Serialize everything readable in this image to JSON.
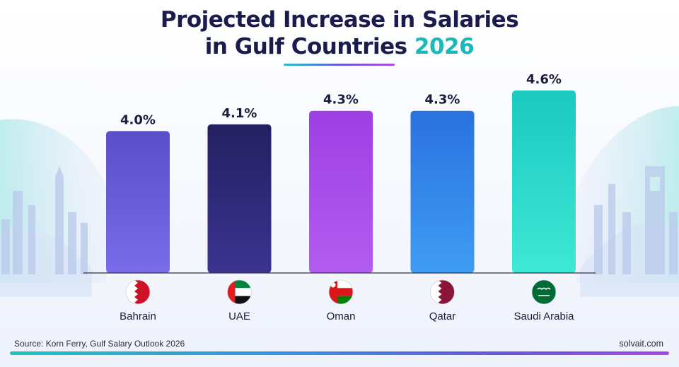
{
  "title": {
    "line1": "Projected Increase in Salaries",
    "line2_prefix": "in Gulf Countries ",
    "line2_year": "2026"
  },
  "chart_data": {
    "type": "bar",
    "categories": [
      "Bahrain",
      "UAE",
      "Oman",
      "Qatar",
      "Saudi Arabia"
    ],
    "values": [
      4.0,
      4.1,
      4.3,
      4.3,
      4.6
    ],
    "data_labels": [
      "4.0%",
      "4.1%",
      "4.3%",
      "4.3%",
      "4.6%"
    ],
    "unit": "%",
    "ylim": [
      0,
      4.6
    ],
    "grid": false,
    "legend": "none",
    "bar_colors": [
      [
        "#7a6ce8",
        "#5a4fc8"
      ],
      [
        "#3a3490",
        "#242062"
      ],
      [
        "#b25cf0",
        "#9e3fe3"
      ],
      [
        "#3f9cf2",
        "#2a72e0"
      ],
      [
        "#3fe8d6",
        "#1bc9c0"
      ]
    ],
    "flag_icons": [
      "bahrain-flag-icon",
      "uae-flag-icon",
      "oman-flag-icon",
      "qatar-flag-icon",
      "saudi-arabia-flag-icon"
    ]
  },
  "footer": {
    "source": "Source:  Korn Ferry, Gulf Salary Outlook 2026",
    "site": "solvait.com"
  },
  "colors": {
    "title": "#1b1b4e",
    "accent_teal": "#18b9b6",
    "baseline": "#333344"
  }
}
